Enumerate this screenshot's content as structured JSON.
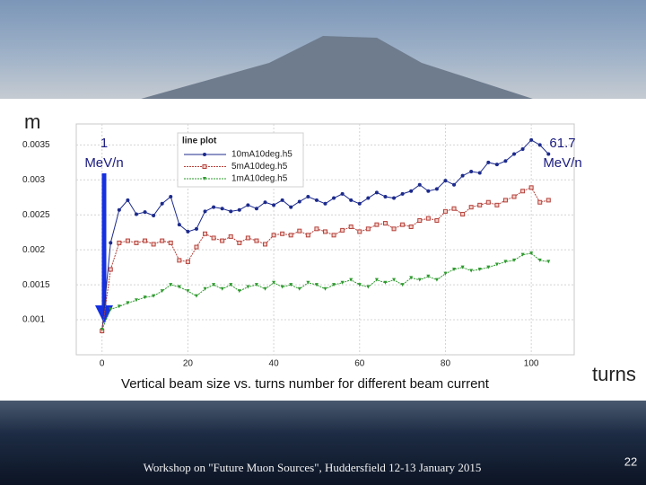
{
  "chart_data": {
    "type": "line",
    "x_label": "turns",
    "y_label": "m",
    "caption": "Vertical beam size vs. turns number for different beam current",
    "legend_title": "line plot",
    "annotations": [
      [
        "1",
        "MeV/n"
      ],
      [
        "61.7",
        "MeV/n"
      ]
    ],
    "x": [
      0,
      2,
      4,
      6,
      8,
      10,
      12,
      14,
      16,
      18,
      20,
      22,
      24,
      26,
      28,
      30,
      32,
      34,
      36,
      38,
      40,
      42,
      44,
      46,
      48,
      50,
      52,
      54,
      56,
      58,
      60,
      62,
      64,
      66,
      68,
      70,
      72,
      74,
      76,
      78,
      80,
      82,
      84,
      86,
      88,
      90,
      92,
      94,
      96,
      98,
      100,
      102,
      104
    ],
    "series": [
      {
        "name": "10mA10deg.h5",
        "color": "#1c2a8c",
        "marker": "circle",
        "values": [
          0.00084,
          0.0021,
          0.00257,
          0.00271,
          0.00251,
          0.00254,
          0.00249,
          0.00266,
          0.00276,
          0.00236,
          0.00226,
          0.0023,
          0.00255,
          0.00261,
          0.00259,
          0.00255,
          0.00257,
          0.00264,
          0.00259,
          0.00268,
          0.00264,
          0.00271,
          0.00261,
          0.00269,
          0.00276,
          0.00271,
          0.00266,
          0.00274,
          0.0028,
          0.00271,
          0.00266,
          0.00274,
          0.00282,
          0.00276,
          0.00274,
          0.0028,
          0.00284,
          0.00293,
          0.00284,
          0.00287,
          0.00299,
          0.00293,
          0.00306,
          0.00312,
          0.0031,
          0.00325,
          0.00322,
          0.00327,
          0.00337,
          0.00344,
          0.00357,
          0.0035,
          0.00337
        ]
      },
      {
        "name": "5mA10deg.h5",
        "color": "#b5423c",
        "marker": "square",
        "values": [
          0.00084,
          0.00172,
          0.0021,
          0.00213,
          0.0021,
          0.00213,
          0.00208,
          0.00213,
          0.0021,
          0.00185,
          0.00183,
          0.00204,
          0.00223,
          0.00217,
          0.00213,
          0.00219,
          0.0021,
          0.00217,
          0.00213,
          0.00208,
          0.00221,
          0.00223,
          0.00221,
          0.00227,
          0.00221,
          0.0023,
          0.00226,
          0.00221,
          0.00228,
          0.00233,
          0.00226,
          0.0023,
          0.00236,
          0.00238,
          0.0023,
          0.00236,
          0.00233,
          0.00242,
          0.00245,
          0.00242,
          0.00255,
          0.00259,
          0.00251,
          0.00261,
          0.00264,
          0.00268,
          0.00264,
          0.00271,
          0.00276,
          0.00284,
          0.00289,
          0.00268,
          0.00271
        ]
      },
      {
        "name": "1mA10deg.h5",
        "color": "#2e9a2e",
        "marker": "triangle",
        "values": [
          0.00086,
          0.00115,
          0.00119,
          0.00124,
          0.00128,
          0.00132,
          0.00134,
          0.00141,
          0.0015,
          0.00147,
          0.00141,
          0.00134,
          0.00144,
          0.0015,
          0.00144,
          0.0015,
          0.00141,
          0.00147,
          0.0015,
          0.00144,
          0.00153,
          0.00147,
          0.0015,
          0.00144,
          0.00153,
          0.0015,
          0.00144,
          0.0015,
          0.00153,
          0.00157,
          0.0015,
          0.00147,
          0.00157,
          0.00153,
          0.00157,
          0.0015,
          0.0016,
          0.00157,
          0.00162,
          0.00157,
          0.00166,
          0.00172,
          0.00175,
          0.0017,
          0.00172,
          0.00175,
          0.00179,
          0.00183,
          0.00185,
          0.00193,
          0.00195,
          0.00185,
          0.00183
        ]
      }
    ],
    "xlim": [
      -6,
      110
    ],
    "xticks": [
      0,
      20,
      40,
      60,
      80,
      100
    ],
    "ylim": [
      0.0005,
      0.0038
    ],
    "yticks": [
      0.001,
      0.0015,
      0.002,
      0.0025,
      0.003,
      0.0035
    ],
    "grid": true
  },
  "footer": {
    "text": "Workshop on \"Future Muon Sources\", Huddersfield 12-13 January 2015",
    "page": "22"
  }
}
